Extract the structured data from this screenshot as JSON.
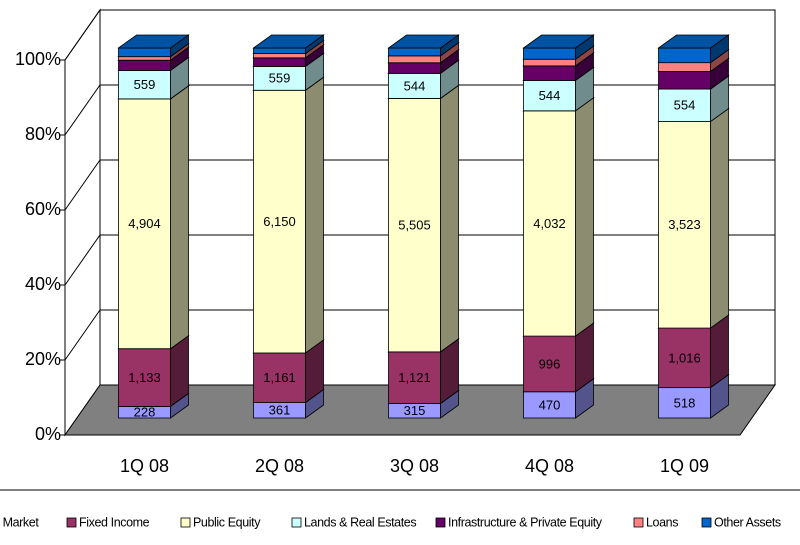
{
  "chart_data": {
    "type": "stacked_bar_3d_percent",
    "categories": [
      "1Q 08",
      "2Q 08",
      "3Q 08",
      "4Q 08",
      "1Q 09"
    ],
    "series": [
      {
        "name": "Money Market",
        "color": "#9999ff",
        "values": [
          228,
          361,
          315,
          470,
          518
        ],
        "value_labels": [
          "228",
          "361",
          "315",
          "470",
          "518"
        ]
      },
      {
        "name": "Fixed Income",
        "color": "#993366",
        "values": [
          1133,
          1161,
          1121,
          996,
          1016
        ],
        "value_labels": [
          "1,133",
          "1,161",
          "1,121",
          "996",
          "1,016"
        ]
      },
      {
        "name": "Public Equity",
        "color": "#ffffcc",
        "values": [
          4904,
          6150,
          5505,
          4032,
          3523
        ],
        "value_labels": [
          "4,904",
          "6,150",
          "5,505",
          "4,032",
          "3,523"
        ]
      },
      {
        "name": "Lands & Real Estates",
        "color": "#ccffff",
        "values": [
          559,
          559,
          544,
          544,
          554
        ],
        "value_labels": [
          "559",
          "559",
          "544",
          "544",
          "554"
        ]
      },
      {
        "name": "Infrastructure & Private Equity",
        "color": "#660066",
        "values": [
          200,
          200,
          230,
          260,
          300
        ]
      },
      {
        "name": "Loans",
        "color": "#ff8080",
        "values": [
          70,
          100,
          150,
          120,
          150
        ]
      },
      {
        "name": "Other Assets",
        "color": "#0066cc",
        "values": [
          170,
          130,
          170,
          200,
          250
        ]
      }
    ],
    "ylim": [
      0,
      100
    ],
    "yticks": [
      {
        "value": 0,
        "label": "0%"
      },
      {
        "value": 20,
        "label": "20%"
      },
      {
        "value": 40,
        "label": "40%"
      },
      {
        "value": 60,
        "label": "60%"
      },
      {
        "value": 80,
        "label": "80%"
      },
      {
        "value": 100,
        "label": "100%"
      }
    ],
    "grid": true
  }
}
